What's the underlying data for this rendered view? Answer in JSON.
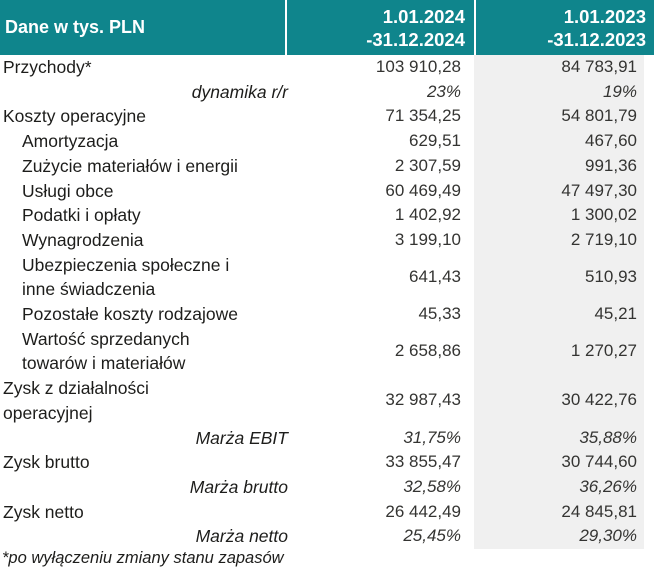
{
  "table": {
    "header": {
      "label": "Dane w tys. PLN",
      "period_2024": [
        "1.01.2024",
        "-31.12.2024"
      ],
      "period_2023": [
        "1.01.2023",
        "-31.12.2023"
      ]
    },
    "rows": [
      {
        "type": "main",
        "label": "Przychody*",
        "v2024": "103 910,28",
        "v2023": "84 783,91"
      },
      {
        "type": "ratio",
        "label": "dynamika r/r",
        "v2024": "23%",
        "v2023": "19%"
      },
      {
        "type": "main",
        "label": "Koszty operacyjne",
        "v2024": "71 354,25",
        "v2023": "54 801,79"
      },
      {
        "type": "sub",
        "label": "Amortyzacja",
        "v2024": "629,51",
        "v2023": "467,60"
      },
      {
        "type": "sub",
        "label": "Zużycie materiałów i energii",
        "v2024": "2 307,59",
        "v2023": "991,36"
      },
      {
        "type": "sub",
        "label": "Usługi obce",
        "v2024": "60 469,49",
        "v2023": "47 497,30"
      },
      {
        "type": "sub",
        "label": "Podatki i opłaty",
        "v2024": "1 402,92",
        "v2023": "1 300,02"
      },
      {
        "type": "sub",
        "label": "Wynagrodzenia",
        "v2024": "3 199,10",
        "v2023": "2 719,10"
      },
      {
        "type": "sub",
        "label": "Ubezpieczenia społeczne i\ninne świadczenia",
        "v2024": "641,43",
        "v2023": "510,93"
      },
      {
        "type": "sub",
        "label": "Pozostałe koszty rodzajowe",
        "v2024": "45,33",
        "v2023": "45,21"
      },
      {
        "type": "sub",
        "label": "Wartość sprzedanych\ntowarów i materiałów",
        "v2024": "2 658,86",
        "v2023": "1 270,27"
      },
      {
        "type": "main",
        "label": "Zysk z działalności\noperacyjnej",
        "v2024": "32 987,43",
        "v2023": "30 422,76"
      },
      {
        "type": "ratio",
        "label": "Marża EBIT",
        "v2024": "31,75%",
        "v2023": "35,88%"
      },
      {
        "type": "main",
        "label": "Zysk brutto",
        "v2024": "33 855,47",
        "v2023": "30 744,60"
      },
      {
        "type": "ratio",
        "label": "Marża brutto",
        "v2024": "32,58%",
        "v2023": "36,26%"
      },
      {
        "type": "main",
        "label": "Zysk netto",
        "v2024": "26 442,49",
        "v2023": "24 845,81"
      },
      {
        "type": "ratio",
        "label": "Marża netto",
        "v2024": "25,45%",
        "v2023": "29,30%"
      }
    ],
    "footnote": "*po wyłączeniu zmiany stanu zapasów"
  },
  "colors": {
    "header_bg": "#0F858C",
    "header_text": "#FFFFFF",
    "col_2023_bg": "#F0F0F0",
    "body_text": "#1D1D1B"
  }
}
